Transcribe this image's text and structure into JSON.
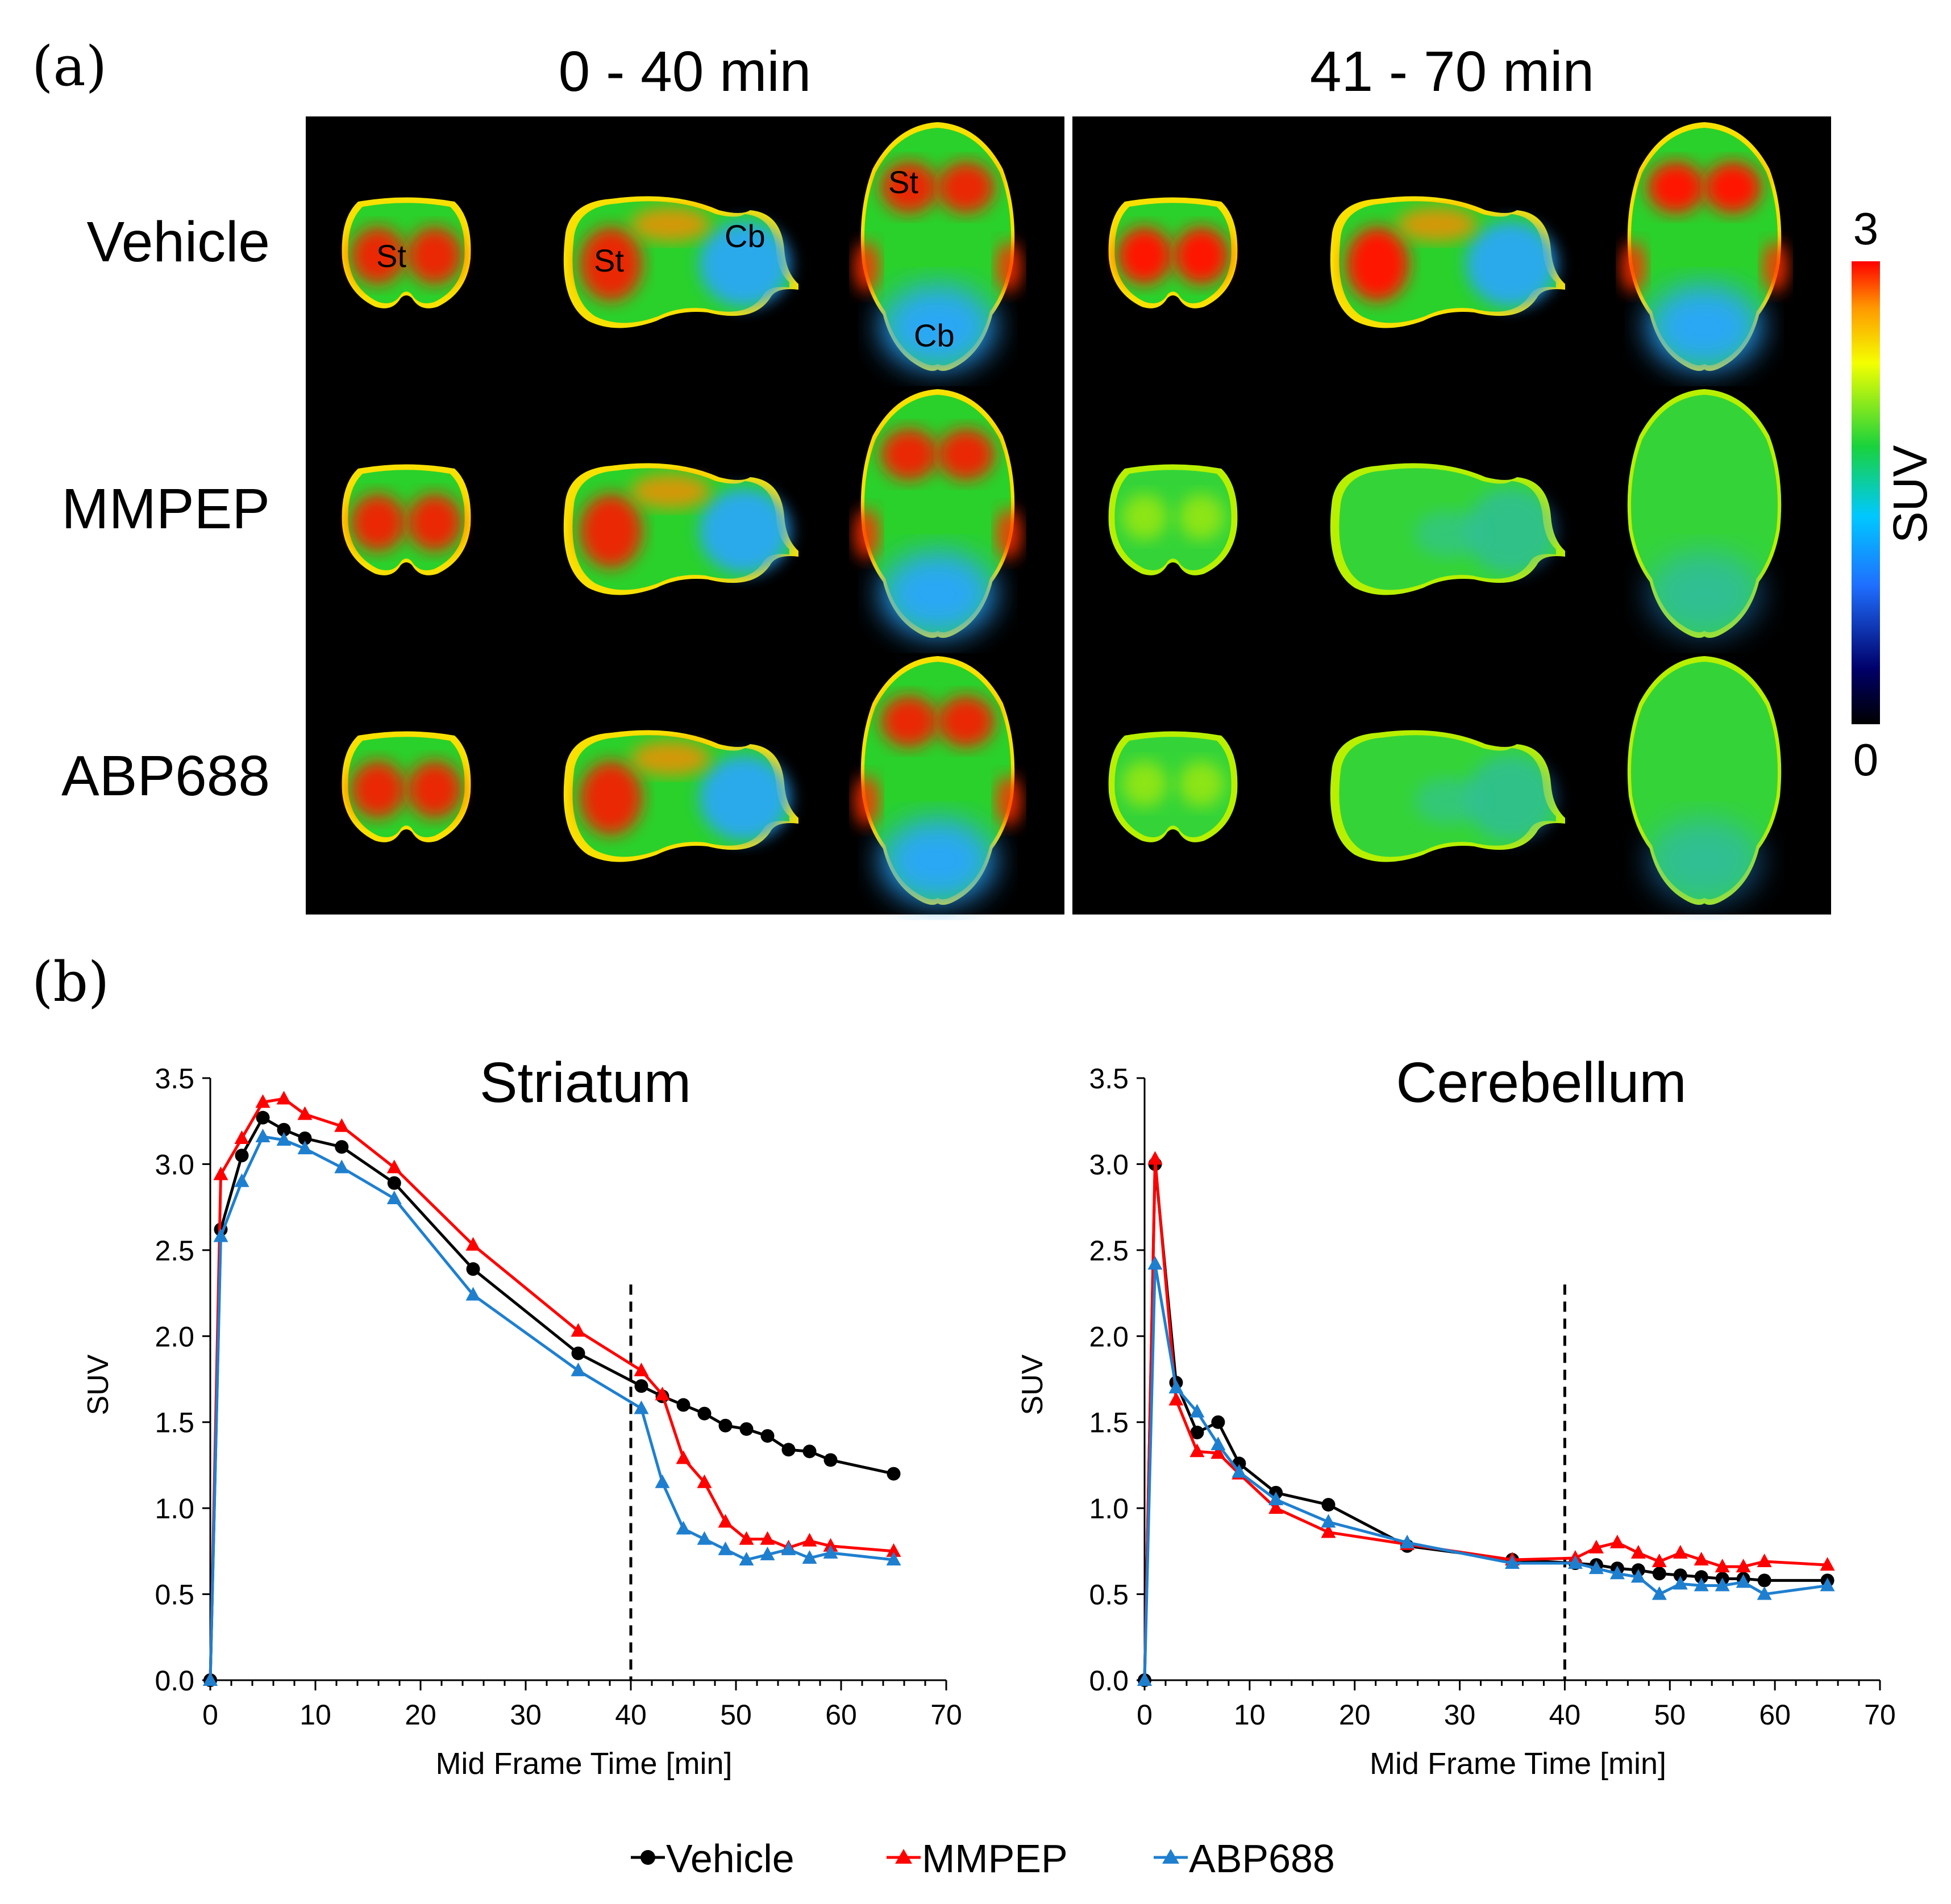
{
  "panel_a": {
    "label": "(a)",
    "headers": [
      "0 - 40 min",
      "41 - 70 min"
    ],
    "rows": [
      "Vehicle",
      "MMPEP",
      "ABP688"
    ],
    "region_labels": [
      "St",
      "St",
      "Cb",
      "St",
      "Cb"
    ],
    "colorbar": {
      "title": "SUV",
      "max": "3",
      "min": "0"
    }
  },
  "panel_b": {
    "label": "(b)",
    "legend": [
      "Vehicle",
      "MMPEP",
      "ABP688"
    ]
  },
  "colors": {
    "Vehicle": "#000000",
    "MMPEP": "#ff0000",
    "ABP688": "#1f7fcf"
  },
  "chart_data": [
    {
      "type": "line",
      "title": "Striatum",
      "xlabel": "Mid Frame Time [min]",
      "ylabel": "SUV",
      "xlim": [
        0,
        70
      ],
      "ylim": [
        0,
        3.5
      ],
      "xticks": [
        "0",
        "10",
        "20",
        "30",
        "40",
        "50",
        "60",
        "70"
      ],
      "yticks": [
        "0.0",
        "0.5",
        "1.0",
        "1.5",
        "2.0",
        "2.5",
        "3.0",
        "3.5"
      ],
      "vline_x": 40,
      "series": [
        {
          "name": "Vehicle",
          "marker": "circle",
          "x": [
            0,
            1,
            3,
            5,
            7,
            9,
            12.5,
            17.5,
            25,
            35,
            41,
            43,
            45,
            47,
            49,
            51,
            53,
            55,
            57,
            59,
            65
          ],
          "values": [
            0,
            2.62,
            3.05,
            3.27,
            3.2,
            3.15,
            3.1,
            2.89,
            2.39,
            1.9,
            1.71,
            1.65,
            1.6,
            1.55,
            1.48,
            1.46,
            1.42,
            1.34,
            1.33,
            1.28,
            1.2
          ]
        },
        {
          "name": "MMPEP",
          "marker": "triangle",
          "x": [
            0,
            1,
            3,
            5,
            7,
            9,
            12.5,
            17.5,
            25,
            35,
            41,
            43,
            45,
            47,
            49,
            51,
            53,
            55,
            57,
            59,
            65
          ],
          "values": [
            0,
            2.94,
            3.15,
            3.36,
            3.38,
            3.29,
            3.22,
            2.98,
            2.53,
            2.03,
            1.8,
            1.66,
            1.29,
            1.15,
            0.92,
            0.82,
            0.82,
            0.77,
            0.81,
            0.78,
            0.75
          ]
        },
        {
          "name": "ABP688",
          "marker": "triangle",
          "x": [
            0,
            1,
            3,
            5,
            7,
            9,
            12.5,
            17.5,
            25,
            35,
            41,
            43,
            45,
            47,
            49,
            51,
            53,
            55,
            57,
            59,
            65
          ],
          "values": [
            0,
            2.58,
            2.9,
            3.16,
            3.14,
            3.09,
            2.98,
            2.8,
            2.24,
            1.8,
            1.58,
            1.15,
            0.88,
            0.82,
            0.76,
            0.7,
            0.73,
            0.76,
            0.71,
            0.74,
            0.7
          ]
        }
      ]
    },
    {
      "type": "line",
      "title": "Cerebellum",
      "xlabel": "Mid Frame Time [min]",
      "ylabel": "SUV",
      "xlim": [
        0,
        70
      ],
      "ylim": [
        0,
        3.5
      ],
      "xticks": [
        "0",
        "10",
        "20",
        "30",
        "40",
        "50",
        "60",
        "70"
      ],
      "yticks": [
        "0.0",
        "0.5",
        "1.0",
        "1.5",
        "2.0",
        "2.5",
        "3.0",
        "3.5"
      ],
      "vline_x": 40,
      "series": [
        {
          "name": "Vehicle",
          "marker": "circle",
          "x": [
            0,
            1,
            3,
            5,
            7,
            9,
            12.5,
            17.5,
            25,
            35,
            41,
            43,
            45,
            47,
            49,
            51,
            53,
            55,
            57,
            59,
            65
          ],
          "values": [
            0,
            3.0,
            1.73,
            1.44,
            1.5,
            1.26,
            1.09,
            1.02,
            0.78,
            0.7,
            0.68,
            0.67,
            0.65,
            0.64,
            0.62,
            0.61,
            0.6,
            0.59,
            0.59,
            0.58,
            0.58
          ]
        },
        {
          "name": "MMPEP",
          "marker": "triangle",
          "x": [
            0,
            1,
            3,
            5,
            7,
            9,
            12.5,
            17.5,
            25,
            35,
            41,
            43,
            45,
            47,
            49,
            51,
            53,
            55,
            57,
            59,
            65
          ],
          "values": [
            0,
            3.03,
            1.63,
            1.33,
            1.32,
            1.2,
            1.0,
            0.86,
            0.79,
            0.7,
            0.71,
            0.77,
            0.8,
            0.74,
            0.69,
            0.74,
            0.7,
            0.66,
            0.66,
            0.69,
            0.67
          ]
        },
        {
          "name": "ABP688",
          "marker": "triangle",
          "x": [
            0,
            1,
            3,
            5,
            7,
            9,
            12.5,
            17.5,
            25,
            35,
            41,
            43,
            45,
            47,
            49,
            51,
            53,
            55,
            57,
            59,
            65
          ],
          "values": [
            0,
            2.42,
            1.7,
            1.56,
            1.37,
            1.21,
            1.05,
            0.92,
            0.8,
            0.68,
            0.68,
            0.65,
            0.62,
            0.6,
            0.5,
            0.56,
            0.55,
            0.55,
            0.57,
            0.5,
            0.55
          ]
        }
      ]
    }
  ]
}
